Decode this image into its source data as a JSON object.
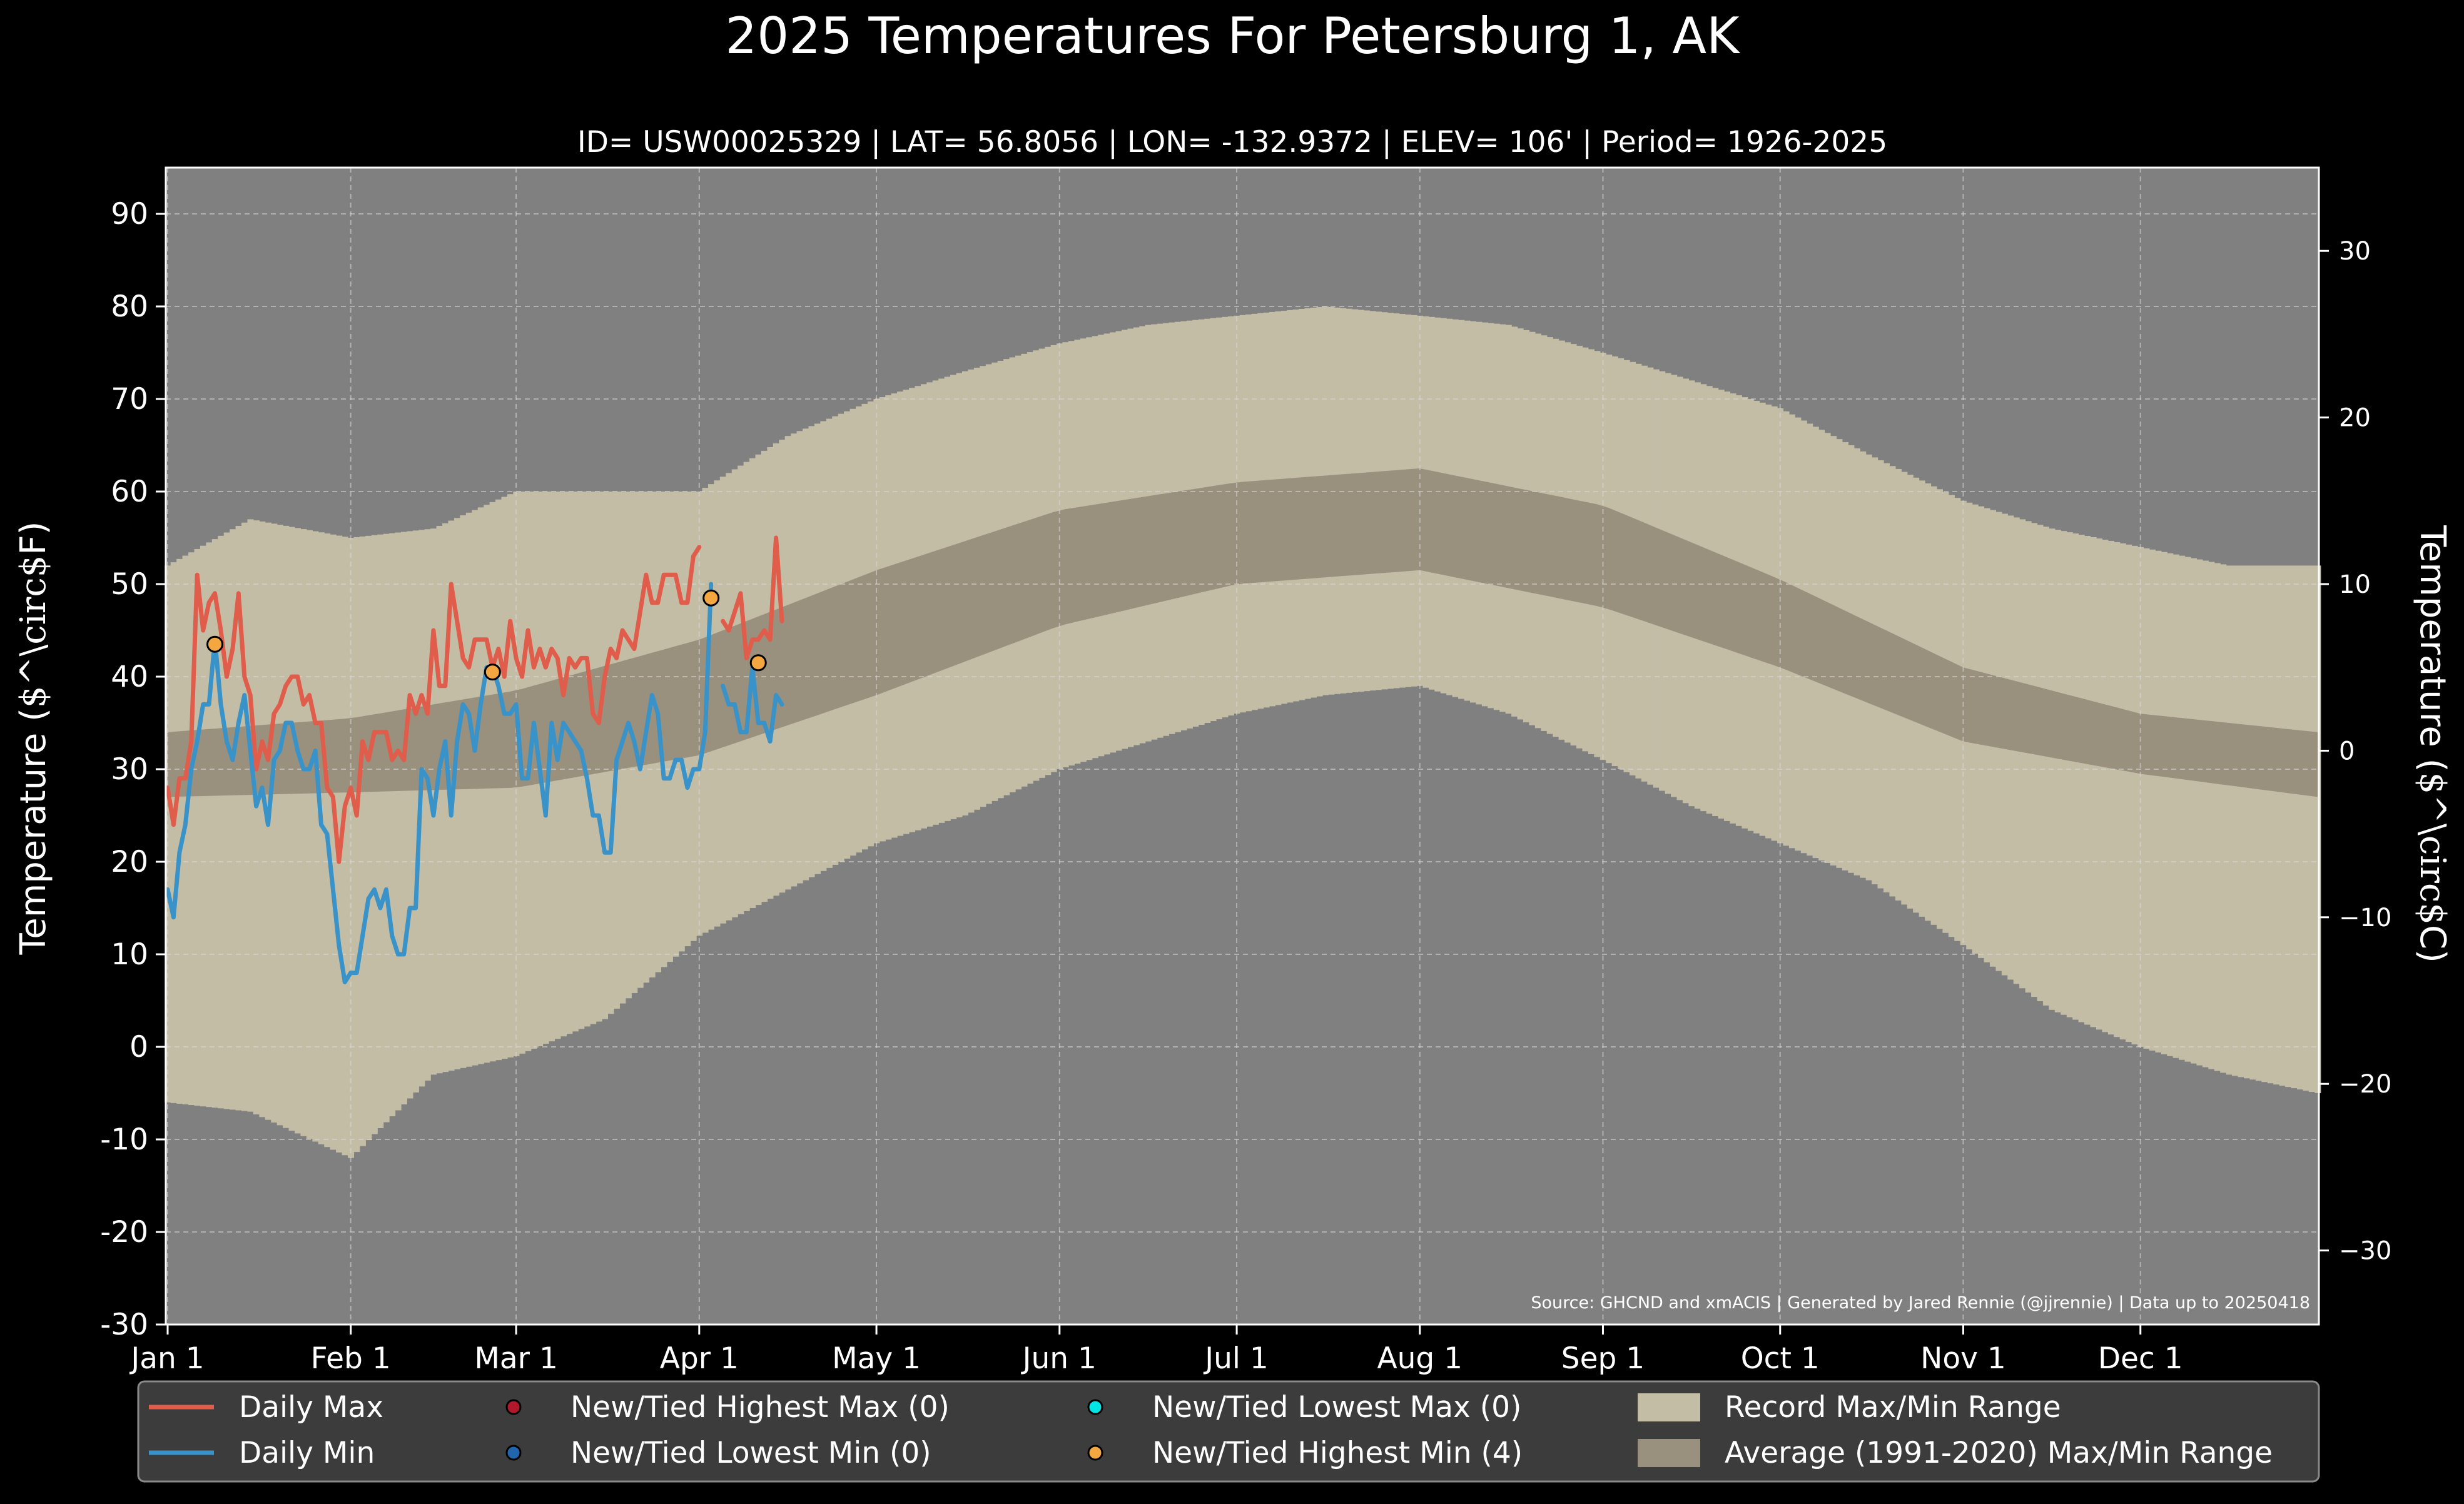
{
  "title": "2025 Temperatures For Petersburg 1, AK",
  "subtitle": "ID= USW00025329 | LAT= 56.8056 | LON= -132.9372 | ELEV= 106' | Period= 1926-2025",
  "source_note": "Source: GHCND and xmACIS | Generated by Jared Rennie (@jjrennie) | Data up to 20250418",
  "colors": {
    "background": "#000000",
    "plot_bg": "#808080",
    "record_range": "#c4bda6",
    "normal_range": "#9a907e",
    "daily_max": "#e05c4b",
    "daily_min": "#3a93c8",
    "new_highest_max": "#b2182b",
    "new_lowest_min": "#2166ac",
    "new_lowest_max": "#00e5e5",
    "new_highest_min": "#f4a641",
    "legend_bg": "#3c3c3c"
  },
  "legend": {
    "daily_max": "Daily Max",
    "daily_min": "Daily Min",
    "new_highest_max": "New/Tied Highest Max (0)",
    "new_lowest_min": "New/Tied Lowest Min (0)",
    "new_lowest_max": "New/Tied Lowest Max (0)",
    "new_highest_min": "New/Tied Highest Min (4)",
    "record_range": "Record Max/Min Range",
    "normal_range": "Average (1991-2020) Max/Min Range"
  },
  "chart_data": {
    "type": "line",
    "title": "2025 Temperatures For Petersburg 1, AK",
    "ylabel": "Temperature ($^\\circ$F)",
    "y2label": "Temperature ($^\\circ$C)",
    "ylim": [
      -30,
      95
    ],
    "y_ticks": [
      -30,
      -20,
      -10,
      0,
      10,
      20,
      30,
      40,
      50,
      60,
      70,
      80,
      90
    ],
    "y2_ticks": [
      -30,
      -20,
      -10,
      0,
      10,
      20,
      30
    ],
    "x_ticks": [
      {
        "day": 1,
        "label": "Jan 1"
      },
      {
        "day": 32,
        "label": "Feb 1"
      },
      {
        "day": 60,
        "label": "Mar 1"
      },
      {
        "day": 91,
        "label": "Apr 1"
      },
      {
        "day": 121,
        "label": "May 1"
      },
      {
        "day": 152,
        "label": "Jun 1"
      },
      {
        "day": 182,
        "label": "Jul 1"
      },
      {
        "day": 213,
        "label": "Aug 1"
      },
      {
        "day": 244,
        "label": "Sep 1"
      },
      {
        "day": 274,
        "label": "Oct 1"
      },
      {
        "day": 305,
        "label": "Nov 1"
      },
      {
        "day": 335,
        "label": "Dec 1"
      }
    ],
    "grid": true,
    "legend_position": "bottom",
    "record_range_anchors": [
      {
        "day": 1,
        "max": 52,
        "min": -6
      },
      {
        "day": 15,
        "max": 57,
        "min": -7
      },
      {
        "day": 32,
        "max": 55,
        "min": -12
      },
      {
        "day": 46,
        "max": 56,
        "min": -3
      },
      {
        "day": 60,
        "max": 60,
        "min": -1
      },
      {
        "day": 75,
        "max": 60,
        "min": 3
      },
      {
        "day": 91,
        "max": 60,
        "min": 12
      },
      {
        "day": 106,
        "max": 66,
        "min": 17
      },
      {
        "day": 121,
        "max": 70,
        "min": 22
      },
      {
        "day": 136,
        "max": 73,
        "min": 25
      },
      {
        "day": 152,
        "max": 76,
        "min": 30
      },
      {
        "day": 167,
        "max": 78,
        "min": 33
      },
      {
        "day": 182,
        "max": 79,
        "min": 36
      },
      {
        "day": 197,
        "max": 80,
        "min": 38
      },
      {
        "day": 213,
        "max": 79,
        "min": 39
      },
      {
        "day": 228,
        "max": 78,
        "min": 36
      },
      {
        "day": 244,
        "max": 75,
        "min": 31
      },
      {
        "day": 259,
        "max": 72,
        "min": 26
      },
      {
        "day": 274,
        "max": 69,
        "min": 22
      },
      {
        "day": 289,
        "max": 64,
        "min": 18
      },
      {
        "day": 305,
        "max": 59,
        "min": 11
      },
      {
        "day": 320,
        "max": 56,
        "min": 4
      },
      {
        "day": 335,
        "max": 54,
        "min": 0
      },
      {
        "day": 350,
        "max": 52,
        "min": -3
      },
      {
        "day": 365,
        "max": 52,
        "min": -5
      }
    ],
    "normal_range_anchors": [
      {
        "day": 1,
        "max": 34,
        "min": 27
      },
      {
        "day": 32,
        "max": 35.5,
        "min": 27.5
      },
      {
        "day": 60,
        "max": 38.5,
        "min": 28
      },
      {
        "day": 91,
        "max": 44,
        "min": 31.5
      },
      {
        "day": 121,
        "max": 51.5,
        "min": 38
      },
      {
        "day": 152,
        "max": 58,
        "min": 45.5
      },
      {
        "day": 182,
        "max": 61,
        "min": 50
      },
      {
        "day": 213,
        "max": 62.5,
        "min": 51.5
      },
      {
        "day": 244,
        "max": 58.5,
        "min": 47.5
      },
      {
        "day": 274,
        "max": 50.5,
        "min": 41
      },
      {
        "day": 305,
        "max": 41,
        "min": 33
      },
      {
        "day": 335,
        "max": 36,
        "min": 29.5
      },
      {
        "day": 365,
        "max": 34,
        "min": 27
      }
    ],
    "series": [
      {
        "name": "Daily Max",
        "x_start_day": 1,
        "segments": [
          {
            "start_day": 1,
            "values": [
              28,
              24,
              29,
              29,
              33,
              51,
              45,
              48,
              49,
              45,
              40,
              43,
              49,
              40,
              38,
              30,
              33,
              31,
              36,
              37,
              39,
              40,
              40,
              37,
              38,
              35,
              35,
              28,
              27,
              20,
              26,
              28,
              25,
              33,
              31,
              34,
              34,
              34,
              31,
              32,
              31,
              38,
              36,
              38,
              36,
              45,
              39,
              39,
              50,
              46,
              42,
              41,
              44,
              44,
              44,
              41,
              43,
              40,
              46,
              42,
              40,
              45,
              41,
              43,
              41,
              43,
              42,
              38,
              42,
              41,
              42,
              42,
              36,
              35,
              40,
              43,
              42,
              45,
              44,
              43,
              47,
              51,
              48,
              48,
              51,
              51,
              51,
              48,
              48,
              53,
              54
            ]
          },
          {
            "start_day": 95,
            "values": [
              46,
              45,
              47,
              49,
              42,
              44,
              44,
              45,
              44,
              55,
              46
            ]
          }
        ]
      },
      {
        "name": "Daily Min",
        "x_start_day": 1,
        "segments": [
          {
            "start_day": 1,
            "values": [
              17,
              14,
              21,
              24,
              30,
              33,
              37,
              37,
              44,
              37,
              33,
              31,
              35,
              38,
              32,
              26,
              28,
              24,
              31,
              32,
              35,
              35,
              32,
              30,
              30,
              32,
              24,
              23,
              17,
              11,
              7,
              8,
              8,
              12,
              16,
              17,
              15,
              17,
              12,
              10,
              10,
              15,
              15,
              30,
              29,
              25,
              30,
              33,
              25,
              33,
              37,
              36,
              32,
              37,
              41,
              41,
              39,
              36,
              36,
              37,
              29,
              29,
              35,
              30,
              25,
              35,
              31,
              35,
              34,
              33,
              32,
              29,
              25,
              25,
              21,
              21,
              31,
              33,
              35,
              33,
              30,
              34,
              38,
              36,
              29,
              29,
              31,
              31,
              28,
              30,
              30,
              34,
              50
            ]
          },
          {
            "start_day": 95,
            "values": [
              39,
              37,
              37,
              34,
              34,
              41,
              35,
              35,
              33,
              38,
              37
            ]
          }
        ]
      }
    ],
    "record_points": [
      {
        "series": "New/Tied Highest Min",
        "day": 9,
        "value": 43.5
      },
      {
        "series": "New/Tied Highest Min",
        "day": 56,
        "value": 40.5
      },
      {
        "series": "New/Tied Highest Min",
        "day": 93,
        "value": 48.5
      },
      {
        "series": "New/Tied Highest Min",
        "day": 101,
        "value": 41.5
      }
    ]
  }
}
